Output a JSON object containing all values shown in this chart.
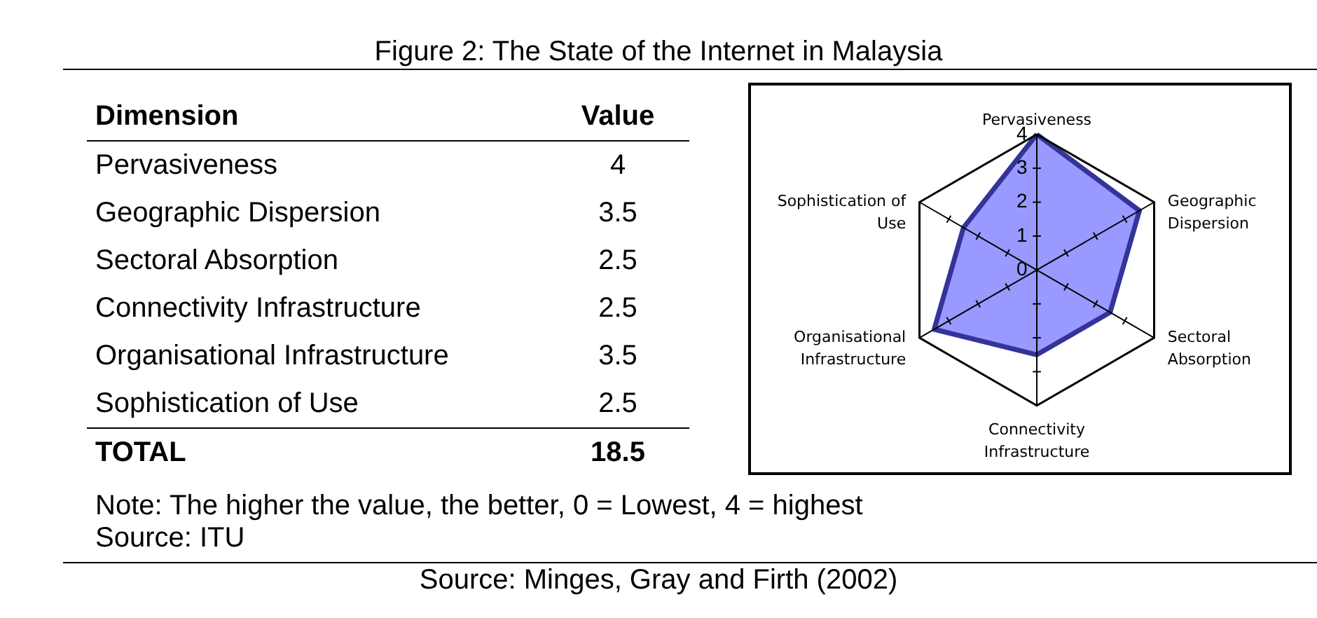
{
  "chart_data": [
    {
      "type": "other",
      "title": "Figure 2: The State of the Internet in Malaysia",
      "xlabel": "Dimension",
      "ylabel": "Value",
      "categories": [
        "Pervasiveness",
        "Geographic Dispersion",
        "Sectoral Absorption",
        "Connectivity Infrastructure",
        "Organisational Infrastructure",
        "Sophistication of Use"
      ],
      "values": [
        4,
        3.5,
        2.5,
        2.5,
        3.5,
        2.5
      ],
      "data_labels": true,
      "totals": [
        "18.5"
      ],
      "annotations": [
        "TOTAL",
        "Note: The higher the value, the better, 0 = Lowest, 4 = highest",
        "Source: ITU",
        "Source: Minges, Gray and Firth (2002)"
      ]
    },
    {
      "type": "radar",
      "categories": [
        "Pervasiveness",
        "Geographic Dispersion",
        "Sectoral Absorption",
        "Connectivity Infrastructure",
        "Organisational Infrastructure",
        "Sophistication of Use"
      ],
      "series": [
        {
          "color": "#9999ff",
          "values": [
            4,
            3.5,
            2.5,
            2.5,
            3.5,
            2.5
          ]
        }
      ],
      "ylim": [
        0,
        4
      ],
      "yticks": [
        0,
        1,
        2,
        3,
        4
      ]
    }
  ]
}
